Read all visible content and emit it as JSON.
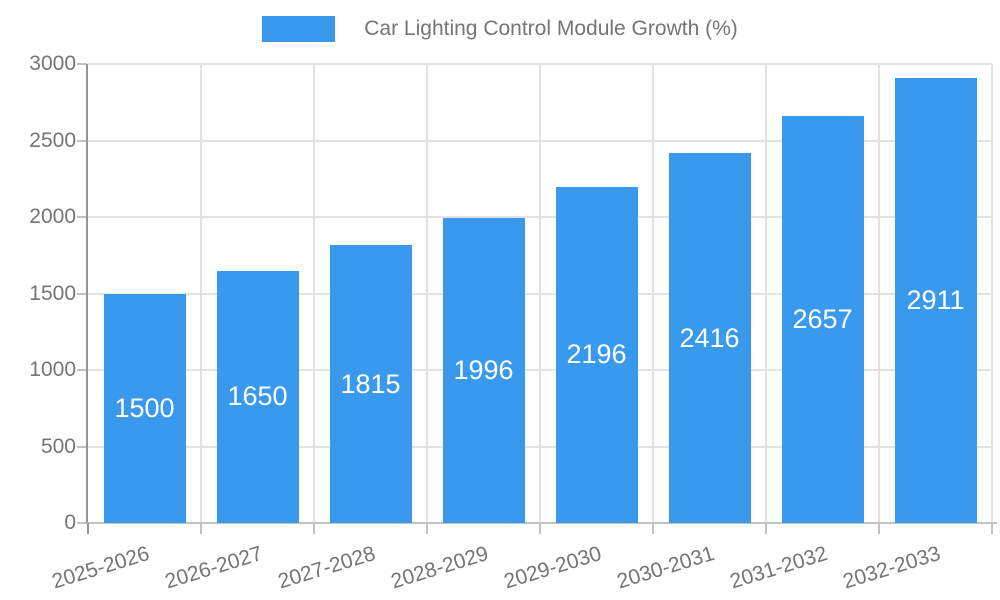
{
  "legend": {
    "swatch_color": "#3999ec",
    "label": "Car Lighting Control Module Growth (%)"
  },
  "chart_data": {
    "type": "bar",
    "title": "Car Lighting Control Module Growth (%)",
    "categories": [
      "2025-2026",
      "2026-2027",
      "2027-2028",
      "2028-2029",
      "2029-2030",
      "2030-2031",
      "2031-2032",
      "2032-2033"
    ],
    "values": [
      1500,
      1650,
      1815,
      1996,
      2196,
      2416,
      2657,
      2911
    ],
    "xlabel": "",
    "ylabel": "",
    "ylim": [
      0,
      3000
    ],
    "yticks": [
      0,
      500,
      1000,
      1500,
      2000,
      2500,
      3000
    ],
    "grid": "on",
    "legend_position": "top-center",
    "value_labels_position": "inside-center",
    "colors": {
      "bar": "#3999ec",
      "bar_value_label": "#ffffff",
      "axis_text": "#757575",
      "grid_line": "#e3e3e3",
      "y_axis_line": "#949494",
      "x_axis_line": "#c2c2c2",
      "background": "#ffffff"
    }
  }
}
